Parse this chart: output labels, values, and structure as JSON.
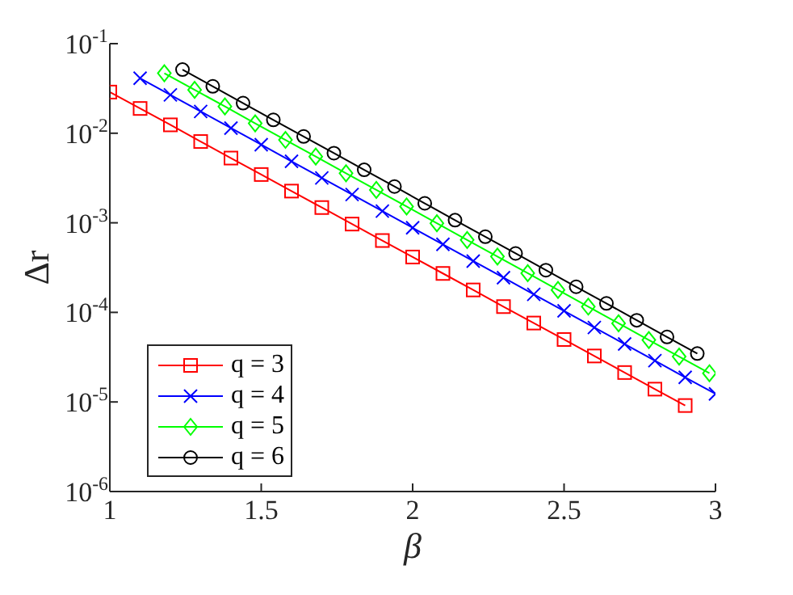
{
  "chart_data": {
    "type": "line",
    "xlabel": "β",
    "ylabel": "Δr",
    "log": "y",
    "grid": false,
    "legend": "bottom left",
    "line_style": "solid",
    "xlim": [
      1,
      3
    ],
    "xticks": [
      1,
      1.5,
      2,
      2.5,
      3
    ],
    "ylim": [
      1e-06,
      0.1
    ],
    "yticks": [
      {
        "value": 1e-06,
        "label": "10$^{-6}$"
      },
      {
        "value": 1e-05,
        "label": "10$^{-5}$"
      },
      {
        "value": 0.0001,
        "label": "10$^{-4}$"
      },
      {
        "value": 0.001,
        "label": "10$^{-3}$"
      },
      {
        "value": 0.01,
        "label": "10$^{-2}$"
      },
      {
        "value": 0.1,
        "label": "10$^{-1}$"
      }
    ],
    "series": [
      {
        "name": "q = 3",
        "color": "#ff0000",
        "marker": "square",
        "x": [
          1,
          1.1,
          1.2,
          1.3,
          1.4,
          1.5,
          1.6,
          1.7,
          1.8,
          1.9,
          2,
          2.1,
          2.2,
          2.3,
          2.4,
          2.5,
          2.6,
          2.7,
          2.8,
          2.9
        ],
        "values": [
          0.0288,
          0.0189,
          0.0124,
          0.00808,
          0.00528,
          0.00346,
          0.00226,
          0.00148,
          0.000968,
          0.000634,
          0.000415,
          0.000272,
          0.000178,
          0.000116,
          7.6e-05,
          4.98e-05,
          3.26e-05,
          2.13e-05,
          1.39e-05,
          9.12e-06
        ]
      },
      {
        "name": "q = 4",
        "color": "#0000ff",
        "marker": "cross",
        "x": [
          1.1,
          1.2,
          1.3,
          1.4,
          1.5,
          1.6,
          1.7,
          1.8,
          1.9,
          2,
          2.1,
          2.2,
          2.3,
          2.4,
          2.5,
          2.6,
          2.7,
          2.8,
          2.9,
          3
        ],
        "values": [
          0.0411,
          0.0268,
          0.0175,
          0.0114,
          0.00745,
          0.00486,
          0.00317,
          0.00207,
          0.00135,
          0.00088,
          0.000574,
          0.000374,
          0.000244,
          0.000159,
          0.000104,
          6.78e-05,
          4.43e-05,
          2.89e-05,
          1.88e-05,
          1.23e-05
        ]
      },
      {
        "name": "q = 5",
        "color": "#00ff00",
        "marker": "diamond",
        "x": [
          1.18,
          1.28,
          1.38,
          1.48,
          1.58,
          1.68,
          1.78,
          1.88,
          1.98,
          2.08,
          2.18,
          2.28,
          2.38,
          2.48,
          2.58,
          2.68,
          2.78,
          2.88,
          2.98
        ],
        "values": [
          0.0468,
          0.0305,
          0.0199,
          0.0129,
          0.00843,
          0.00549,
          0.00357,
          0.00233,
          0.00152,
          0.000989,
          0.000644,
          0.00042,
          0.000274,
          0.000178,
          0.000116,
          7.55e-05,
          4.92e-05,
          3.21e-05,
          2.09e-05
        ]
      },
      {
        "name": "q = 6",
        "color": "#000000",
        "marker": "circle",
        "x": [
          1.24,
          1.34,
          1.44,
          1.54,
          1.64,
          1.74,
          1.84,
          1.94,
          2.04,
          2.14,
          2.24,
          2.34,
          2.44,
          2.54,
          2.64,
          2.74,
          2.84,
          2.94
        ],
        "values": [
          0.0513,
          0.0334,
          0.0217,
          0.0141,
          0.0092,
          0.00599,
          0.0039,
          0.00254,
          0.00165,
          0.00107,
          0.0007,
          0.000455,
          0.000296,
          0.000193,
          0.000126,
          8.17e-05,
          5.32e-05,
          3.47e-05
        ]
      }
    ]
  }
}
